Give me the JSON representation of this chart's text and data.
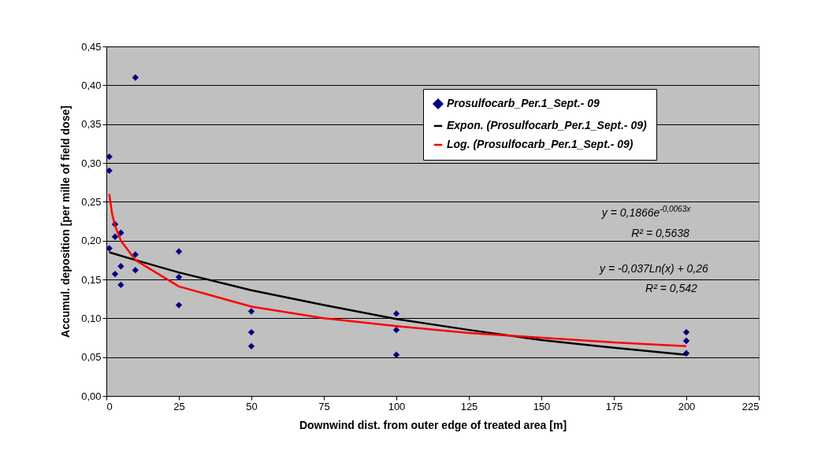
{
  "chart_data": {
    "type": "scatter",
    "xlabel": "Downwind dist. from outer edge of treated area [m]",
    "ylabel": "Accumul. deposition [per mille of field dose]",
    "xlim": [
      0,
      225
    ],
    "xticks": [
      0,
      25,
      50,
      75,
      100,
      125,
      150,
      175,
      200,
      225
    ],
    "ylim": [
      0,
      0.45
    ],
    "yticks": [
      {
        "value": 0,
        "label": "0,00"
      },
      {
        "value": 0.05,
        "label": "0,05"
      },
      {
        "value": 0.1,
        "label": "0,10"
      },
      {
        "value": 0.15,
        "label": "0,15"
      },
      {
        "value": 0.2,
        "label": "0,20"
      },
      {
        "value": 0.25,
        "label": "0,25"
      },
      {
        "value": 0.3,
        "label": "0,30"
      },
      {
        "value": 0.35,
        "label": "0,35"
      },
      {
        "value": 0.4,
        "label": "0,40"
      },
      {
        "value": 0.45,
        "label": "0,45"
      }
    ],
    "grid": "y",
    "legend": "top right",
    "series": [
      {
        "name": "Prosulfocarb_Per.1_Sept.- 09",
        "marker": "diamond",
        "color": "#000080",
        "x": [
          1,
          1,
          1,
          3,
          3,
          3,
          5,
          5,
          5,
          10,
          10,
          10,
          25,
          25,
          25,
          50,
          50,
          50,
          100,
          100,
          100,
          200,
          200,
          200
        ],
        "values": [
          0.308,
          0.29,
          0.19,
          0.221,
          0.205,
          0.157,
          0.21,
          0.167,
          0.143,
          0.41,
          0.182,
          0.162,
          0.186,
          0.153,
          0.117,
          0.109,
          0.082,
          0.064,
          0.106,
          0.085,
          0.053,
          0.082,
          0.071,
          0.055
        ]
      },
      {
        "name": "Expon. (Prosulfocarb_Per.1_Sept.- 09)",
        "type": "line",
        "marker": "none",
        "color": "#000000",
        "x": [
          1,
          10,
          25,
          50,
          75,
          100,
          125,
          150,
          175,
          200
        ],
        "values": [
          0.185,
          0.175,
          0.159,
          0.136,
          0.117,
          0.099,
          0.085,
          0.072,
          0.062,
          0.053
        ]
      },
      {
        "name": "Log. (Prosulfocarb_Per.1_Sept.- 09)",
        "type": "line",
        "marker": "none",
        "color": "#ff0000",
        "x": [
          1,
          2,
          3,
          5,
          10,
          25,
          50,
          75,
          100,
          125,
          150,
          175,
          200
        ],
        "values": [
          0.26,
          0.234,
          0.219,
          0.2,
          0.175,
          0.141,
          0.115,
          0.1,
          0.09,
          0.081,
          0.075,
          0.069,
          0.064
        ]
      }
    ],
    "annotations": [
      "y = 0,1866e$^{-0,0063x}$",
      "R² = 0,5638",
      "y = -0,037Ln(x) + 0,26",
      "R² = 0,542"
    ]
  }
}
